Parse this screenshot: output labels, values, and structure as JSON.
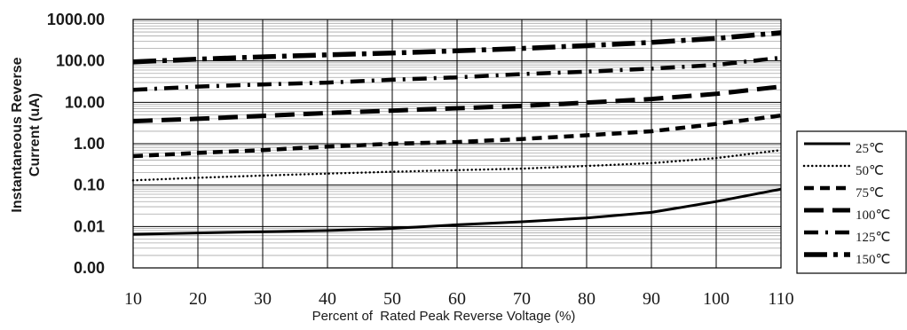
{
  "chart_data": {
    "type": "line",
    "title": "",
    "xlabel": "Percent of  Rated Peak Reverse Voltage (%)",
    "ylabel": [
      "Instantaneous Reverse",
      "Current (uA)"
    ],
    "x_scale": "linear",
    "y_scale": "log",
    "xlim": [
      10,
      110
    ],
    "ylim": [
      0.001,
      1000
    ],
    "x_ticks": [
      10,
      20,
      30,
      40,
      50,
      60,
      70,
      80,
      90,
      100,
      110
    ],
    "x_tick_labels": [
      "10",
      "20",
      "30",
      "40",
      "50",
      "60",
      "70",
      "80",
      "90",
      "100",
      "110"
    ],
    "y_ticks": [
      0.001,
      0.01,
      0.1,
      1,
      10,
      100,
      1000
    ],
    "y_tick_labels": [
      "0.00",
      "0.01",
      "0.10",
      "1.00",
      "10.00",
      "100.00",
      "1000.00"
    ],
    "grid": true,
    "legend_position": "right",
    "x": [
      10,
      20,
      30,
      40,
      50,
      60,
      70,
      80,
      90,
      100,
      110
    ],
    "series": [
      {
        "name": "25℃",
        "style": "solid",
        "values": [
          0.0065,
          0.007,
          0.0075,
          0.008,
          0.009,
          0.011,
          0.013,
          0.016,
          0.022,
          0.04,
          0.08
        ]
      },
      {
        "name": "50℃",
        "style": "dotted",
        "values": [
          0.13,
          0.15,
          0.17,
          0.19,
          0.21,
          0.23,
          0.25,
          0.29,
          0.34,
          0.45,
          0.7
        ]
      },
      {
        "name": "75℃",
        "style": "dash",
        "values": [
          0.5,
          0.6,
          0.7,
          0.85,
          1.0,
          1.1,
          1.3,
          1.6,
          2.0,
          3.0,
          4.8
        ]
      },
      {
        "name": "100℃",
        "style": "longdash",
        "values": [
          3.5,
          4.0,
          4.7,
          5.5,
          6.3,
          7.2,
          8.2,
          9.8,
          12,
          16,
          24
        ]
      },
      {
        "name": "125℃",
        "style": "dashdot",
        "values": [
          20,
          24,
          27,
          30,
          35,
          40,
          48,
          55,
          65,
          80,
          120
        ]
      },
      {
        "name": "150℃",
        "style": "heavydashdot",
        "values": [
          95,
          110,
          125,
          140,
          155,
          175,
          200,
          235,
          280,
          350,
          480
        ]
      }
    ]
  }
}
